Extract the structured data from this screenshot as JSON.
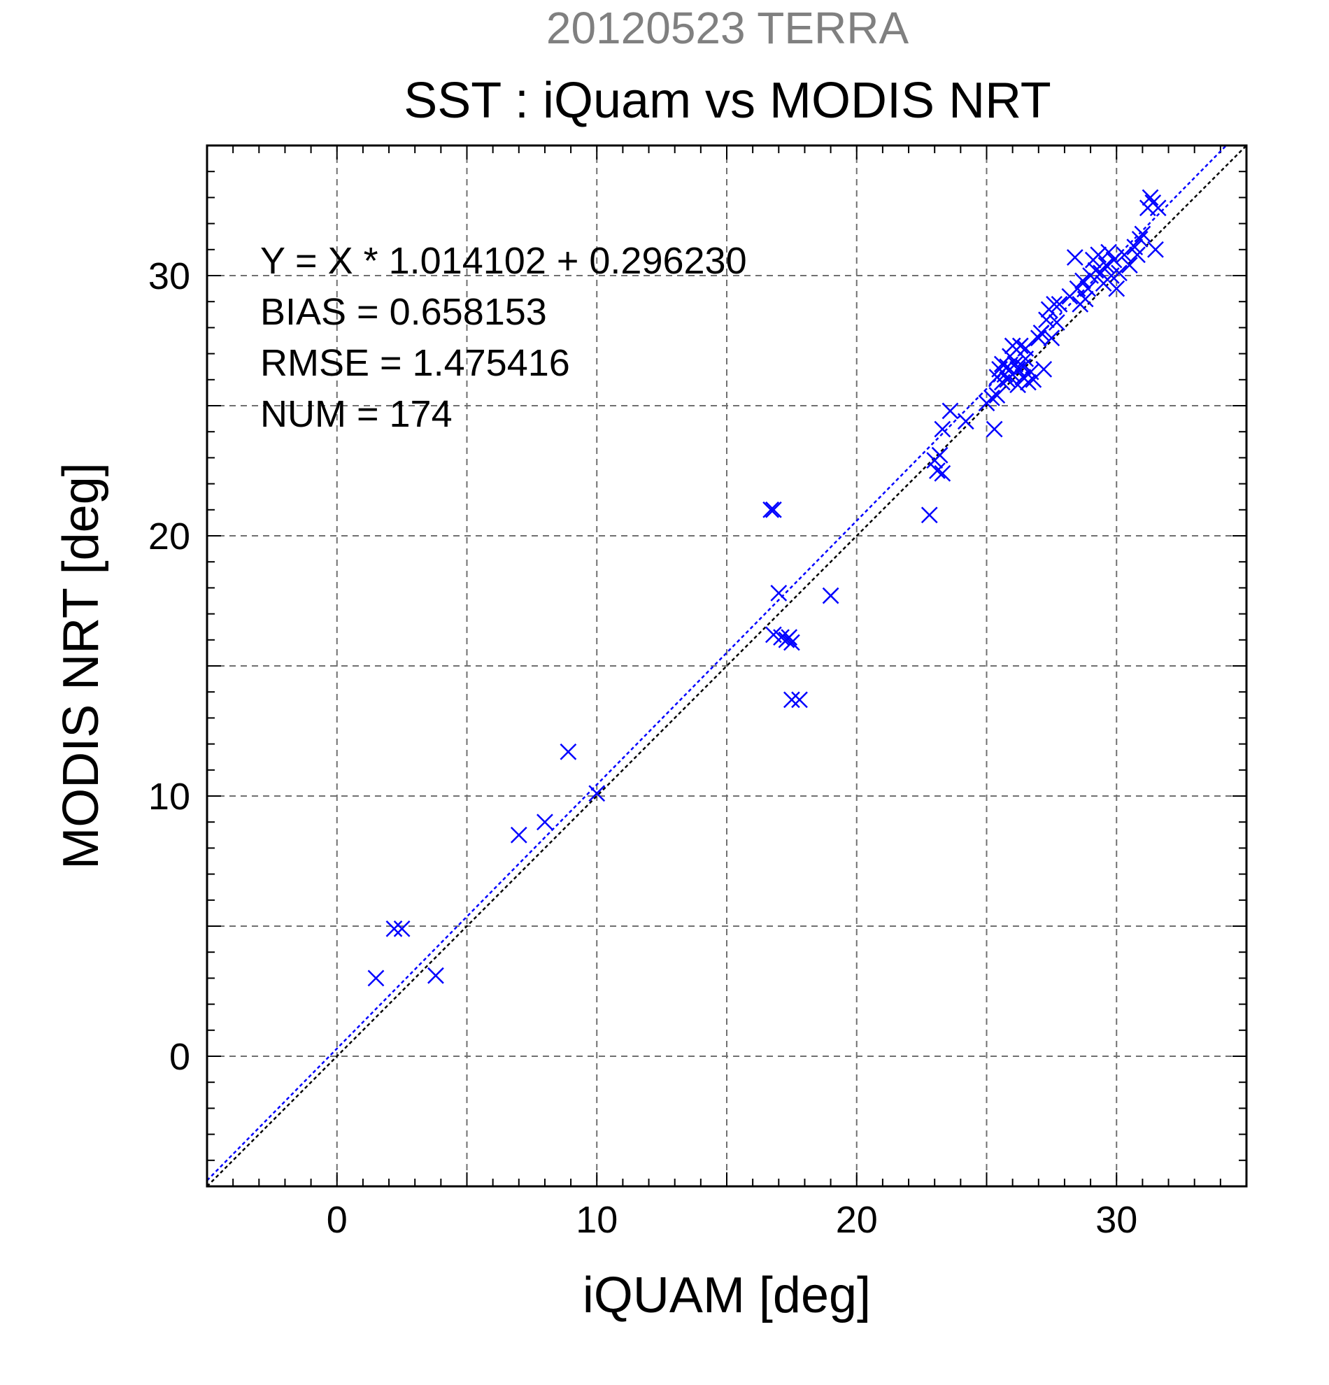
{
  "chart_data": {
    "type": "scatter",
    "title_top": "20120523 TERRA",
    "title": "SST : iQuam vs MODIS NRT",
    "xlabel": "iQUAM [deg]",
    "ylabel": "MODIS NRT [deg]",
    "xlim": [
      -5,
      35
    ],
    "ylim": [
      -5,
      35
    ],
    "xticks": [
      0,
      10,
      20,
      30
    ],
    "yticks": [
      0,
      10,
      20,
      30
    ],
    "grid": true,
    "annotations": [
      "Y = X * 1.014102 + 0.296230",
      "BIAS = 0.658153",
      "RMSE = 1.475416",
      "NUM = 174"
    ],
    "fit_line": {
      "slope": 1.014102,
      "intercept": 0.29623,
      "color": "#0000ff"
    },
    "one_to_one_line": {
      "slope": 1,
      "intercept": 0,
      "color": "#000000"
    },
    "series": [
      {
        "marker": "x",
        "color": "#0000ff",
        "points": [
          [
            1.5,
            3.0
          ],
          [
            2.2,
            4.9
          ],
          [
            2.5,
            4.9
          ],
          [
            3.8,
            3.1
          ],
          [
            7.0,
            8.5
          ],
          [
            8.0,
            9.0
          ],
          [
            8.9,
            11.7
          ],
          [
            10.0,
            10.1
          ],
          [
            16.7,
            21.0
          ],
          [
            16.8,
            21.0
          ],
          [
            16.8,
            16.2
          ],
          [
            17.0,
            17.8
          ],
          [
            17.1,
            16.1
          ],
          [
            17.3,
            16.0
          ],
          [
            17.4,
            16.1
          ],
          [
            17.5,
            15.9
          ],
          [
            17.5,
            13.7
          ],
          [
            17.8,
            13.7
          ],
          [
            19.0,
            17.7
          ],
          [
            22.8,
            20.8
          ],
          [
            23.0,
            22.9
          ],
          [
            23.1,
            22.5
          ],
          [
            23.2,
            23.1
          ],
          [
            23.3,
            22.4
          ],
          [
            23.3,
            24.1
          ],
          [
            23.6,
            24.8
          ],
          [
            24.2,
            24.4
          ],
          [
            25.0,
            25.1
          ],
          [
            25.2,
            25.3
          ],
          [
            25.3,
            24.1
          ],
          [
            25.4,
            25.4
          ],
          [
            25.4,
            26.1
          ],
          [
            25.5,
            26.4
          ],
          [
            25.6,
            25.9
          ],
          [
            25.6,
            26.6
          ],
          [
            25.7,
            26.2
          ],
          [
            25.8,
            26.5
          ],
          [
            25.8,
            26.0
          ],
          [
            25.9,
            26.9
          ],
          [
            26.0,
            27.3
          ],
          [
            26.0,
            26.2
          ],
          [
            26.1,
            26.6
          ],
          [
            26.2,
            25.8
          ],
          [
            26.2,
            26.4
          ],
          [
            26.3,
            27.3
          ],
          [
            26.4,
            26.1
          ],
          [
            26.4,
            26.5
          ],
          [
            26.5,
            26.8
          ],
          [
            26.5,
            27.2
          ],
          [
            26.6,
            25.9
          ],
          [
            26.7,
            26.3
          ],
          [
            26.8,
            26.0
          ],
          [
            27.0,
            27.6
          ],
          [
            27.1,
            27.8
          ],
          [
            27.2,
            26.4
          ],
          [
            27.3,
            28.3
          ],
          [
            27.4,
            28.7
          ],
          [
            27.5,
            27.6
          ],
          [
            27.6,
            28.9
          ],
          [
            27.7,
            28.2
          ],
          [
            27.8,
            28.9
          ],
          [
            28.2,
            29.2
          ],
          [
            28.4,
            30.7
          ],
          [
            28.5,
            29.5
          ],
          [
            28.6,
            28.9
          ],
          [
            28.7,
            29.8
          ],
          [
            28.8,
            29.1
          ],
          [
            28.9,
            29.5
          ],
          [
            29.0,
            30.0
          ],
          [
            29.1,
            30.6
          ],
          [
            29.2,
            30.2
          ],
          [
            29.3,
            30.8
          ],
          [
            29.4,
            30.1
          ],
          [
            29.5,
            29.7
          ],
          [
            29.6,
            30.4
          ],
          [
            29.7,
            30.9
          ],
          [
            29.8,
            30.0
          ],
          [
            29.9,
            30.6
          ],
          [
            30.0,
            29.5
          ],
          [
            30.1,
            30.1
          ],
          [
            30.3,
            30.8
          ],
          [
            30.5,
            30.4
          ],
          [
            30.7,
            31.1
          ],
          [
            30.8,
            30.8
          ],
          [
            30.9,
            31.4
          ],
          [
            31.0,
            31.6
          ],
          [
            31.2,
            32.6
          ],
          [
            31.3,
            33.0
          ],
          [
            31.4,
            32.8
          ],
          [
            31.5,
            31.0
          ],
          [
            31.6,
            32.6
          ]
        ]
      }
    ]
  }
}
